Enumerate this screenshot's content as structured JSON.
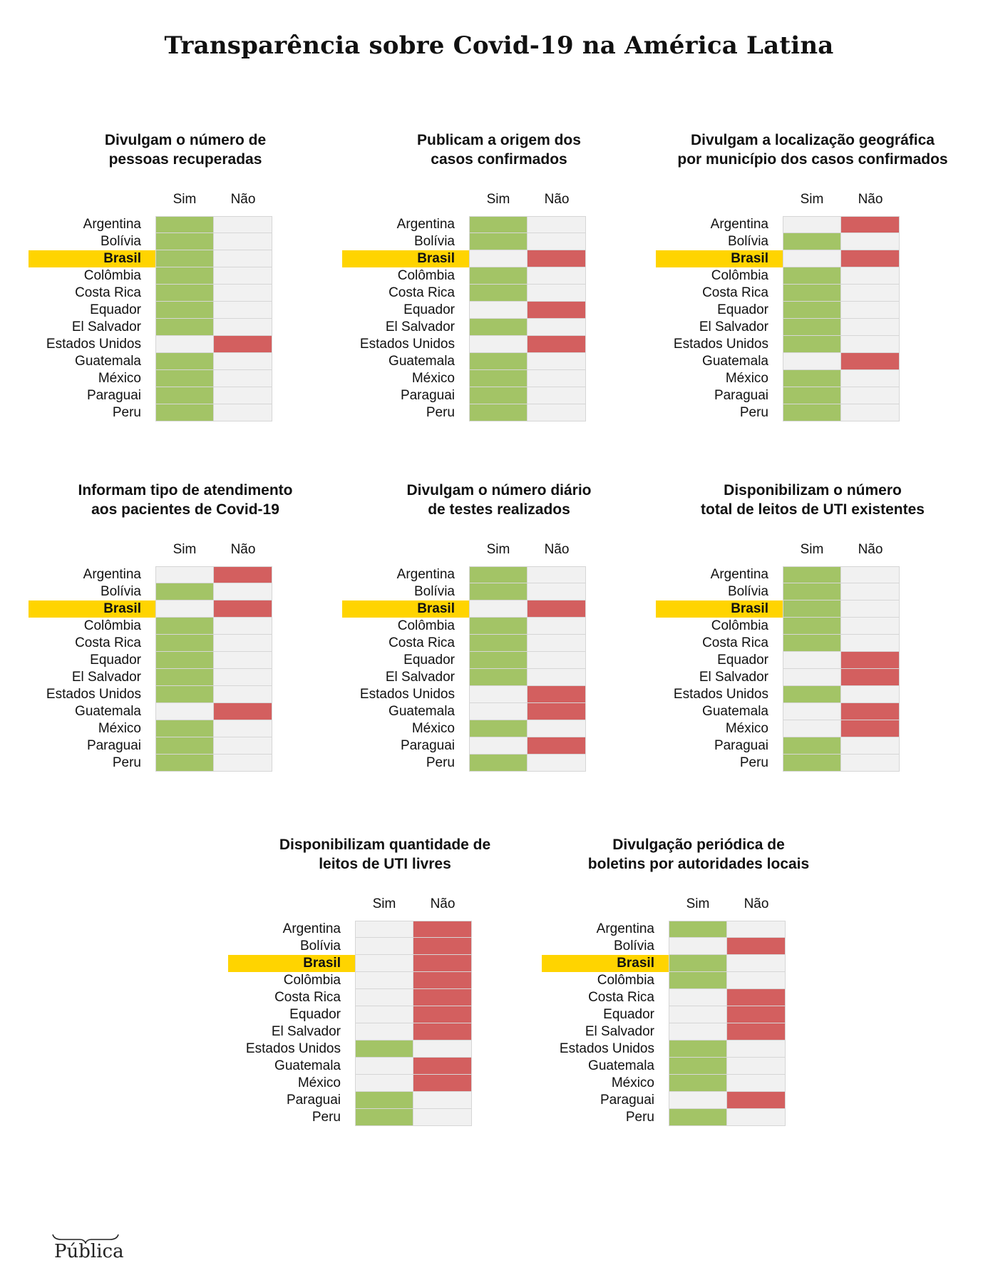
{
  "title": "Transparência sobre Covid-19 na América Latina",
  "colors": {
    "sim": "#a3c466",
    "nao": "#d35f5f",
    "neutral": "#f1f1f1",
    "highlight": "#ffd400"
  },
  "columns": [
    "Sim",
    "Não"
  ],
  "highlight_country": "Brasil",
  "logo_text": "Pública",
  "chart_data": [
    {
      "type": "table",
      "title": "Divulgam o número de pessoas recuperadas",
      "title_lines": [
        "Divulgam o número de",
        "pessoas recuperadas"
      ],
      "rows": [
        "Argentina",
        "Bolívia",
        "Brasil",
        "Colômbia",
        "Costa Rica",
        "Equador",
        "El Salvador",
        "Estados Unidos",
        "Guatemala",
        "México",
        "Paraguai",
        "Peru"
      ],
      "values": [
        "Sim",
        "Sim",
        "Sim",
        "Sim",
        "Sim",
        "Sim",
        "Sim",
        "Não",
        "Sim",
        "Sim",
        "Sim",
        "Sim"
      ]
    },
    {
      "type": "table",
      "title": "Publicam a origem dos casos confirmados",
      "title_lines": [
        "Publicam a origem dos",
        "casos confirmados"
      ],
      "rows": [
        "Argentina",
        "Bolívia",
        "Brasil",
        "Colômbia",
        "Costa Rica",
        "Equador",
        "El Salvador",
        "Estados Unidos",
        "Guatemala",
        "México",
        "Paraguai",
        "Peru"
      ],
      "values": [
        "Sim",
        "Sim",
        "Não",
        "Sim",
        "Sim",
        "Não",
        "Sim",
        "Não",
        "Sim",
        "Sim",
        "Sim",
        "Sim"
      ]
    },
    {
      "type": "table",
      "title": "Divulgam a localização geográfica por município dos casos confirmados",
      "title_lines": [
        "Divulgam a localização geográfica",
        "por município dos casos confirmados"
      ],
      "rows": [
        "Argentina",
        "Bolívia",
        "Brasil",
        "Colômbia",
        "Costa Rica",
        "Equador",
        "El Salvador",
        "Estados Unidos",
        "Guatemala",
        "México",
        "Paraguai",
        "Peru"
      ],
      "values": [
        "Não",
        "Sim",
        "Não",
        "Sim",
        "Sim",
        "Sim",
        "Sim",
        "Sim",
        "Não",
        "Sim",
        "Sim",
        "Sim"
      ]
    },
    {
      "type": "table",
      "title": "Informam tipo de atendimento aos pacientes de Covid-19",
      "title_lines": [
        "Informam tipo de atendimento",
        "aos pacientes de Covid-19"
      ],
      "rows": [
        "Argentina",
        "Bolívia",
        "Brasil",
        "Colômbia",
        "Costa Rica",
        "Equador",
        "El Salvador",
        "Estados Unidos",
        "Guatemala",
        "México",
        "Paraguai",
        "Peru"
      ],
      "values": [
        "Não",
        "Sim",
        "Não",
        "Sim",
        "Sim",
        "Sim",
        "Sim",
        "Sim",
        "Não",
        "Sim",
        "Sim",
        "Sim"
      ]
    },
    {
      "type": "table",
      "title": "Divulgam o número diário de testes realizados",
      "title_lines": [
        "Divulgam o número diário",
        "de testes realizados"
      ],
      "rows": [
        "Argentina",
        "Bolívia",
        "Brasil",
        "Colômbia",
        "Costa Rica",
        "Equador",
        "El Salvador",
        "Estados Unidos",
        "Guatemala",
        "México",
        "Paraguai",
        "Peru"
      ],
      "values": [
        "Sim",
        "Sim",
        "Não",
        "Sim",
        "Sim",
        "Sim",
        "Sim",
        "Não",
        "Não",
        "Sim",
        "Não",
        "Sim"
      ]
    },
    {
      "type": "table",
      "title": "Disponibilizam o número total de leitos de UTI existentes",
      "title_lines": [
        "Disponibilizam o número",
        "total de leitos de UTI existentes"
      ],
      "rows": [
        "Argentina",
        "Bolívia",
        "Brasil",
        "Colômbia",
        "Costa Rica",
        "Equador",
        "El Salvador",
        "Estados Unidos",
        "Guatemala",
        "México",
        "Paraguai",
        "Peru"
      ],
      "values": [
        "Sim",
        "Sim",
        "Sim",
        "Sim",
        "Sim",
        "Não",
        "Não",
        "Sim",
        "Não",
        "Não",
        "Sim",
        "Sim"
      ]
    },
    {
      "type": "table",
      "title": "Disponibilizam quantidade de leitos de UTI livres",
      "title_lines": [
        "Disponibilizam quantidade de",
        "leitos de UTI livres"
      ],
      "rows": [
        "Argentina",
        "Bolívia",
        "Brasil",
        "Colômbia",
        "Costa Rica",
        "Equador",
        "El Salvador",
        "Estados Unidos",
        "Guatemala",
        "México",
        "Paraguai",
        "Peru"
      ],
      "values": [
        "Não",
        "Não",
        "Não",
        "Não",
        "Não",
        "Não",
        "Não",
        "Sim",
        "Não",
        "Não",
        "Sim",
        "Sim"
      ]
    },
    {
      "type": "table",
      "title": "Divulgação periódica de boletins por autoridades locais",
      "title_lines": [
        "Divulgação periódica de",
        "boletins por autoridades locais"
      ],
      "rows": [
        "Argentina",
        "Bolívia",
        "Brasil",
        "Colômbia",
        "Costa Rica",
        "Equador",
        "El Salvador",
        "Estados Unidos",
        "Guatemala",
        "México",
        "Paraguai",
        "Peru"
      ],
      "values": [
        "Sim",
        "Não",
        "Sim",
        "Sim",
        "Não",
        "Não",
        "Não",
        "Sim",
        "Sim",
        "Sim",
        "Não",
        "Sim"
      ]
    }
  ]
}
